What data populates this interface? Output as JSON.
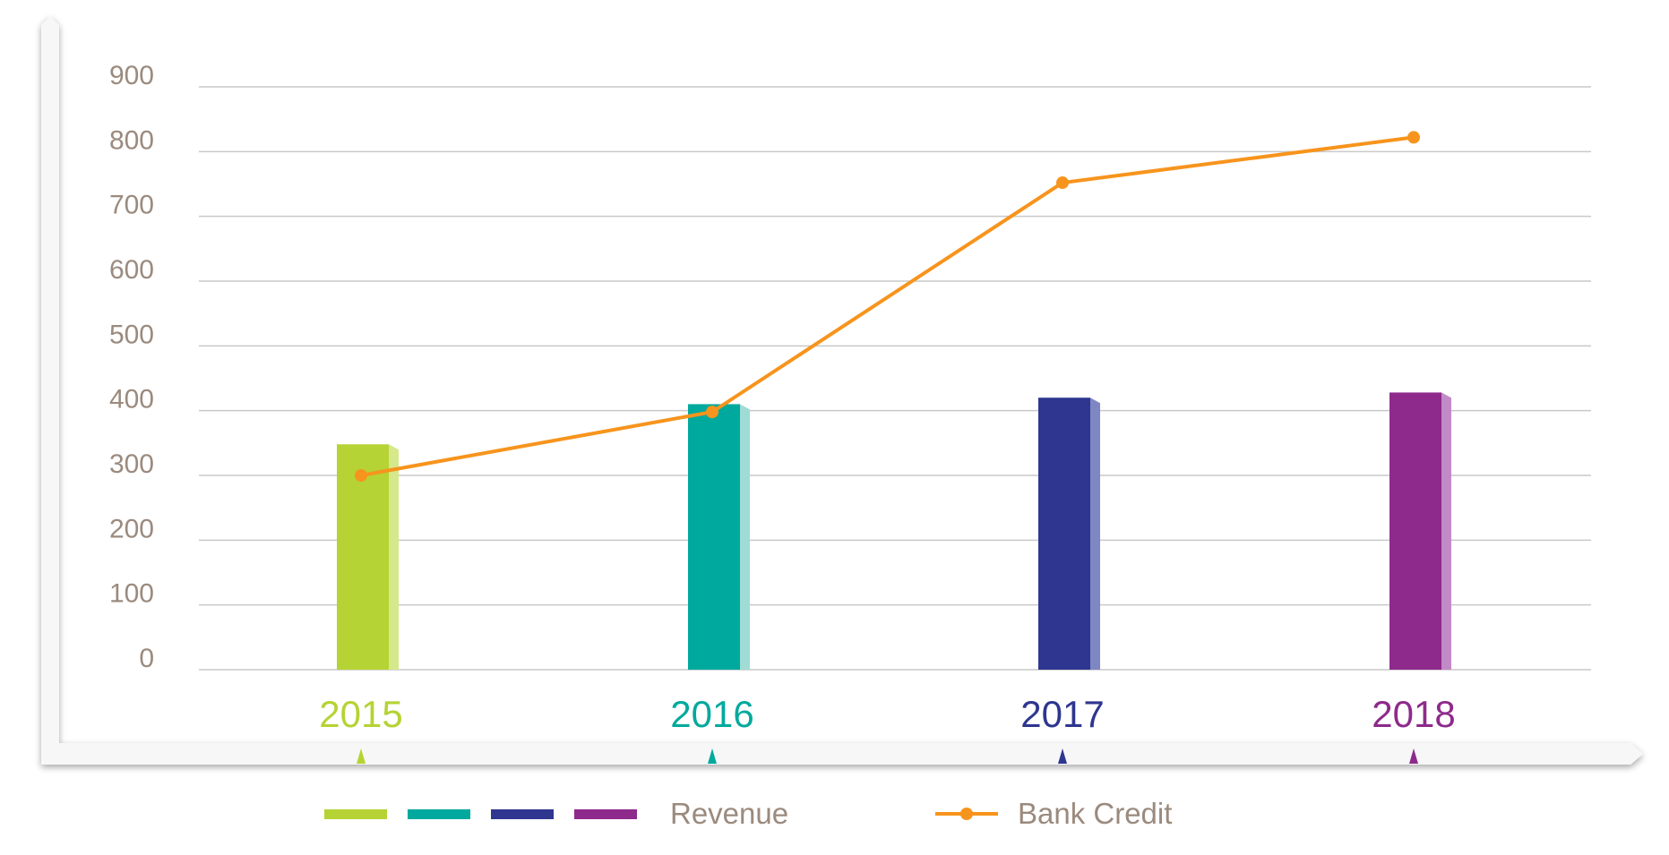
{
  "chart_data": {
    "type": "bar",
    "categories": [
      "2015",
      "2016",
      "2017",
      "2018"
    ],
    "series": [
      {
        "name": "Revenue",
        "type": "bar",
        "values": [
          348,
          410,
          420,
          428
        ],
        "colors": [
          "#b5d334",
          "#00a99d",
          "#2e368f",
          "#8e2a8c"
        ],
        "side_colors": [
          "#d5e88a",
          "#9fdcd5",
          "#7f86c4",
          "#c28ac6"
        ]
      },
      {
        "name": "Bank Credit",
        "type": "line",
        "values": [
          300,
          398,
          752,
          822
        ],
        "color": "#f7941d"
      }
    ],
    "category_colors": [
      "#b5d334",
      "#00a99d",
      "#2e368f",
      "#8e2a8c"
    ],
    "ylim": [
      0,
      900
    ],
    "yticks": [
      "0",
      "100",
      "200",
      "300",
      "400",
      "500",
      "600",
      "700",
      "800",
      "900"
    ],
    "grid": true,
    "legend_position": "bottom-center"
  }
}
